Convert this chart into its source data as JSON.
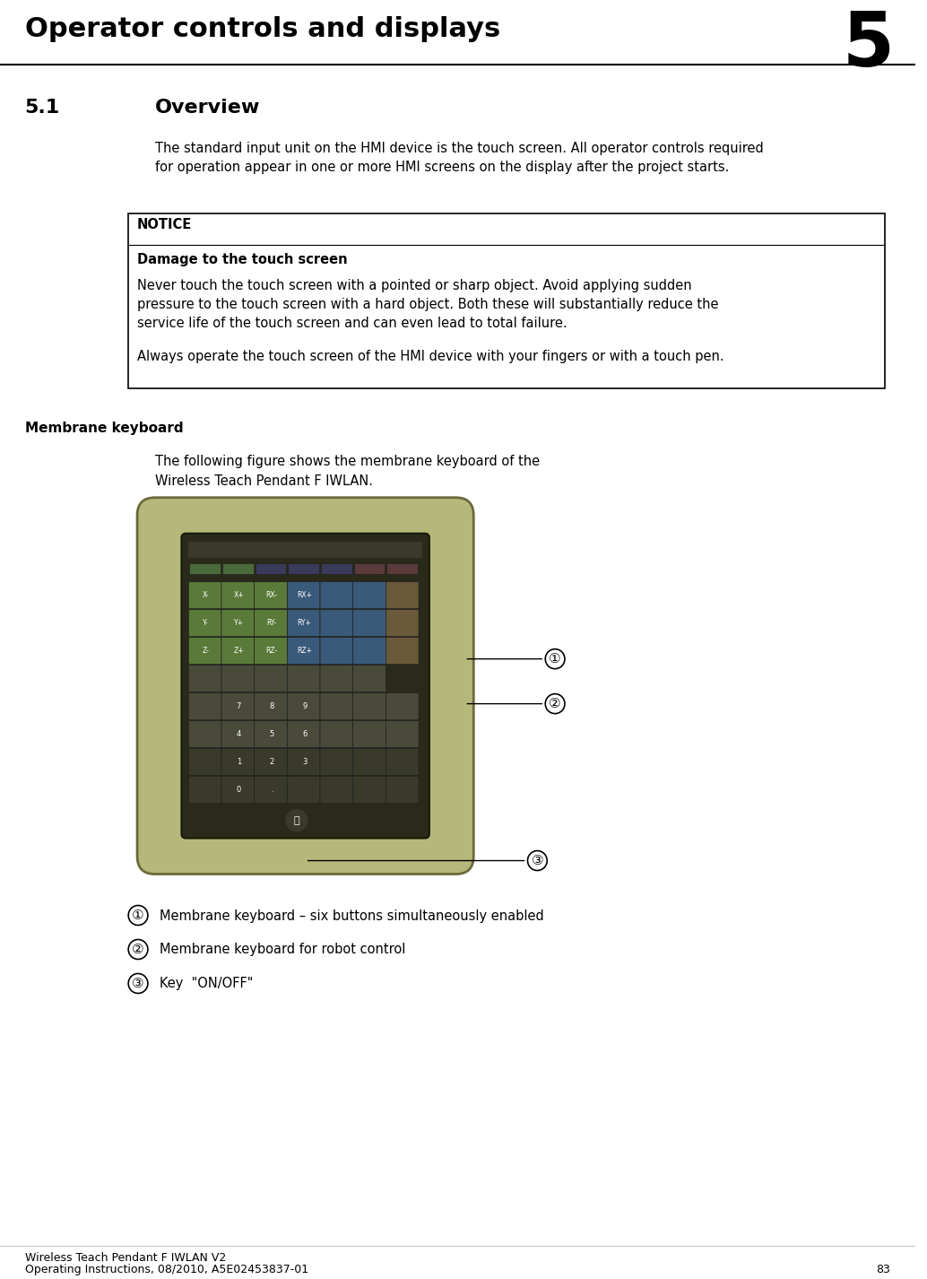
{
  "title_text": "Operator controls and displays",
  "chapter_number": "5",
  "section_number": "5.1",
  "section_title": "Overview",
  "body_text": "The standard input unit on the HMI device is the touch screen. All operator controls required\nfor operation appear in one or more HMI screens on the display after the project starts.",
  "notice_header": "NOTICE",
  "notice_title": "Damage to the touch screen",
  "notice_body1": "Never touch the touch screen with a pointed or sharp object. Avoid applying sudden\npressure to the touch screen with a hard object. Both these will substantially reduce the\nservice life of the touch screen and can even lead to total failure.",
  "notice_body2": "Always operate the touch screen of the HMI device with your fingers or with a touch pen.",
  "membrane_header": "Membrane keyboard",
  "membrane_body": "The following figure shows the membrane keyboard of the\nWireless Teach Pendant F IWLAN.",
  "legend1": "Membrane keyboard – six buttons simultaneously enabled",
  "legend2": "Membrane keyboard for robot control",
  "legend3": "Key  \"ON/OFF\"",
  "footer_line1": "Wireless Teach Pendant F IWLAN V2",
  "footer_line2": "Operating Instructions, 08/2010, A5E02453837-01",
  "footer_page": "83",
  "bg_color": "#ffffff",
  "text_color": "#000000",
  "title_line_color": "#000000",
  "notice_border_color": "#000000"
}
